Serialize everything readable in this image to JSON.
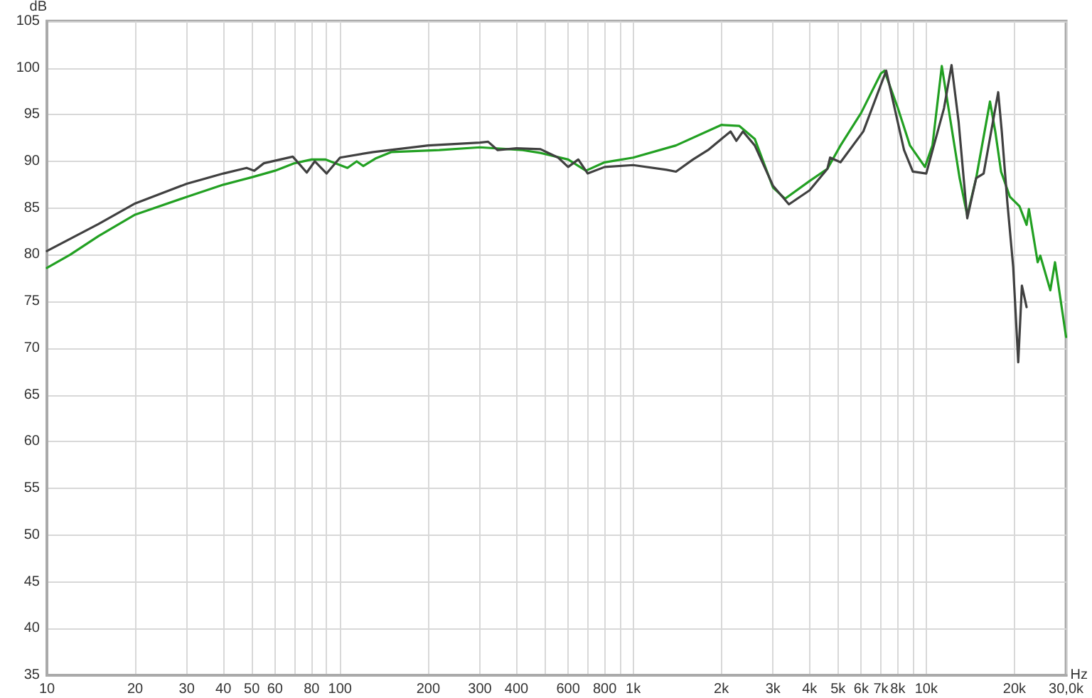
{
  "chart_data": {
    "type": "line",
    "xlabel": "Hz",
    "ylabel": "dB",
    "log": "x",
    "grid": true,
    "marker": "none",
    "line_style": "solid",
    "xlim": [
      10,
      30000
    ],
    "ylim": [
      35,
      105
    ],
    "xticks": [
      10,
      20,
      30,
      40,
      50,
      60,
      {
        "value": 70,
        "label": null
      },
      80,
      {
        "value": 90,
        "label": null
      },
      100,
      200,
      300,
      400,
      {
        "value": 500,
        "label": null
      },
      600,
      {
        "value": 700,
        "label": null
      },
      800,
      {
        "value": 900,
        "label": null
      },
      {
        "value": 1000,
        "label": "1k"
      },
      {
        "value": 2000,
        "label": "2k"
      },
      {
        "value": 3000,
        "label": "3k"
      },
      {
        "value": 4000,
        "label": "4k"
      },
      {
        "value": 5000,
        "label": "5k"
      },
      {
        "value": 6000,
        "label": "6k"
      },
      {
        "value": 7000,
        "label": "7k"
      },
      {
        "value": 8000,
        "label": "8k"
      },
      {
        "value": 9000,
        "label": null
      },
      {
        "value": 10000,
        "label": "10k"
      },
      {
        "value": 20000,
        "label": "20k"
      },
      {
        "value": 30000,
        "label": "30,0k"
      }
    ],
    "yticks": [
      35,
      40,
      45,
      50,
      55,
      60,
      65,
      70,
      75,
      80,
      85,
      90,
      95,
      100,
      105
    ],
    "series": [
      {
        "color": "#22a022",
        "x": [
          10,
          12,
          15,
          20,
          30,
          40,
          50,
          60,
          70,
          80,
          89,
          106,
          114,
          120,
          132,
          150,
          218,
          300,
          420,
          483,
          600,
          690,
          800,
          1000,
          1400,
          2000,
          2300,
          2600,
          3000,
          3300,
          4000,
          4600,
          5100,
          6000,
          7000,
          7200,
          8000,
          8800,
          9900,
          10500,
          11300,
          11700,
          13000,
          13800,
          14800,
          16500,
          17200,
          18000,
          19300,
          20800,
          22000,
          22400,
          24000,
          24500,
          26500,
          27500,
          30000
        ],
        "values": [
          78.6,
          80,
          82,
          84.3,
          86.2,
          87.5,
          88.3,
          89,
          89.8,
          90.2,
          90.2,
          89.3,
          90,
          89.5,
          90.3,
          91,
          91.2,
          91.5,
          91.2,
          90.9,
          90.2,
          89,
          89.9,
          90.4,
          91.7,
          93.9,
          93.8,
          92.4,
          87.2,
          86,
          87.9,
          89.2,
          91.7,
          95.2,
          99.4,
          99.7,
          95.7,
          91.7,
          89.4,
          91.7,
          100.2,
          97.2,
          88.2,
          84.2,
          88.2,
          96.4,
          93.2,
          88.9,
          86.2,
          85.2,
          83.2,
          84.9,
          79.2,
          79.9,
          76.2,
          79.2,
          71.2
        ]
      },
      {
        "color": "#404040",
        "x": [
          10,
          15,
          20,
          30,
          40,
          48,
          51,
          55,
          69,
          77,
          82,
          90,
          100,
          130,
          200,
          300,
          320,
          345,
          400,
          483,
          555,
          600,
          650,
          700,
          800,
          1000,
          1300,
          1400,
          1600,
          1800,
          2150,
          2250,
          2370,
          2600,
          3000,
          3400,
          4000,
          4600,
          4700,
          5100,
          6100,
          7300,
          8400,
          9000,
          10000,
          11500,
          12200,
          12900,
          13800,
          14800,
          15700,
          17600,
          18100,
          18900,
          19800,
          20600,
          21200,
          22000
        ],
        "values": [
          80.4,
          83.3,
          85.5,
          87.6,
          88.7,
          89.3,
          89,
          89.8,
          90.5,
          88.8,
          90,
          88.7,
          90.4,
          91,
          91.7,
          92,
          92.1,
          91.2,
          91.4,
          91.3,
          90.4,
          89.4,
          90.2,
          88.7,
          89.4,
          89.6,
          89.1,
          88.9,
          90.2,
          91.2,
          93.2,
          92.2,
          93.2,
          91.7,
          87.4,
          85.4,
          86.9,
          89.2,
          90.4,
          89.9,
          93.2,
          99.7,
          91.2,
          88.9,
          88.7,
          95.7,
          100.3,
          94.2,
          83.9,
          88.2,
          88.7,
          97.4,
          93.2,
          85.7,
          78.7,
          68.5,
          76.7,
          74.4
        ]
      }
    ]
  }
}
